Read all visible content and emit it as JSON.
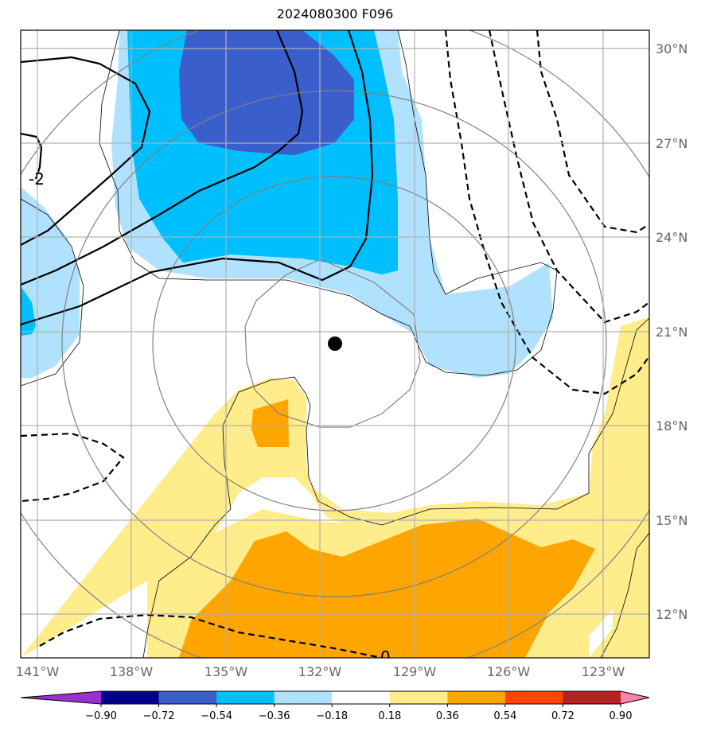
{
  "title": "2024080300 F096",
  "lat_labels": [
    "30°N",
    "27°N",
    "24°N",
    "21°N",
    "18°N",
    "15°N",
    "12°N"
  ],
  "lon_labels": [
    "141°W",
    "138°W",
    "135°W",
    "132°W",
    "129°W",
    "126°W",
    "123°W"
  ],
  "colorbar": {
    "ticks": [
      "−0.90",
      "−0.72",
      "−0.54",
      "−0.36",
      "−0.18",
      "0.18",
      "0.36",
      "0.54",
      "0.72",
      "0.90"
    ],
    "colors": [
      "#9932cc",
      "#00008b",
      "#3a5fcd",
      "#00bfff",
      "#b0e2ff",
      "#ffffff",
      "#ffec8b",
      "#ffa500",
      "#ff4500",
      "#b22222",
      "#ff82ab"
    ]
  },
  "contour_labels": [
    "-2",
    "0"
  ],
  "center_marker": "storm-center"
}
